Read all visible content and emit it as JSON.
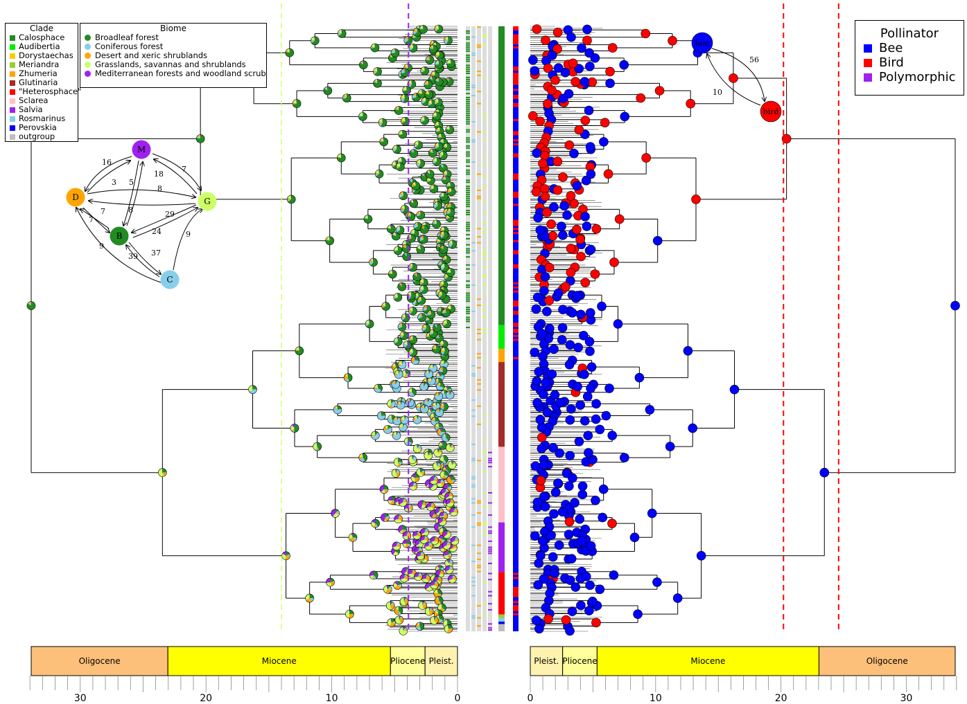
{
  "clade_legend": {
    "title": "Clade",
    "items": [
      {
        "label": "Calosphace",
        "color": "#228B22"
      },
      {
        "label": "Audibertia",
        "color": "#00EE00"
      },
      {
        "label": "Dorystaechas",
        "color": "#F2D000"
      },
      {
        "label": "Meriandra",
        "color": "#9ACD32"
      },
      {
        "label": "Zhumeria",
        "color": "#FFA500"
      },
      {
        "label": "Glutinaria",
        "color": "#A52A2A"
      },
      {
        "label": "\"Heterosphace\"",
        "color": "#FF0000"
      },
      {
        "label": "Sclarea",
        "color": "#FFC0CB"
      },
      {
        "label": "Salvia",
        "color": "#A020F0"
      },
      {
        "label": "Rosmarinus",
        "color": "#87CEEB"
      },
      {
        "label": "Perovskia",
        "color": "#0000EE"
      },
      {
        "label": "outgroup",
        "color": "#BEBEBE"
      }
    ]
  },
  "biome_legend": {
    "title": "Biome",
    "items": [
      {
        "label": "Broadleaf forest",
        "color": "#228B22"
      },
      {
        "label": "Coniferous forest",
        "color": "#87CEEB"
      },
      {
        "label": "Desert and xeric shrublands",
        "color": "#FFA500"
      },
      {
        "label": "Grasslands, savannas and shrublands",
        "color": "#CCFF66"
      },
      {
        "label": "Mediterranean forests and woodland scrub",
        "color": "#A020F0"
      }
    ]
  },
  "pollinator_legend": {
    "title": "Pollinator",
    "items": [
      {
        "label": "Bee",
        "color": "#0000FF"
      },
      {
        "label": "Bird",
        "color": "#FF0000"
      },
      {
        "label": "Polymorphic",
        "color": "#A020F0"
      }
    ]
  },
  "biome_network": {
    "nodes": [
      {
        "id": "M",
        "label": "M",
        "color": "#A020F0"
      },
      {
        "id": "D",
        "label": "D",
        "color": "#FFA500"
      },
      {
        "id": "G",
        "label": "G",
        "color": "#CCFF66"
      },
      {
        "id": "B",
        "label": "B",
        "color": "#228B22"
      },
      {
        "id": "C",
        "label": "C",
        "color": "#87CEEB"
      }
    ],
    "edge_labels": [
      "16",
      "3",
      "5",
      "18",
      "7",
      "8",
      "8",
      "29",
      "24",
      "7",
      "7",
      "9",
      "39",
      "37",
      "9"
    ]
  },
  "pollinator_network": {
    "nodes": [
      {
        "id": "bee",
        "label": "bee",
        "color": "#0000FF"
      },
      {
        "id": "bird",
        "label": "bird",
        "color": "#FF0000"
      }
    ],
    "edge_labels": [
      "56",
      "10"
    ]
  },
  "left_timescale": {
    "epochs": [
      {
        "label": "Oligocene",
        "from": 33.9,
        "to": 23.03,
        "color": "#FDC07A"
      },
      {
        "label": "Miocene",
        "from": 23.03,
        "to": 5.33,
        "color": "#FFFF00"
      },
      {
        "label": "Pliocene",
        "from": 5.33,
        "to": 2.58,
        "color": "#FFFF99"
      },
      {
        "label": "Pleist.",
        "from": 2.58,
        "to": 0,
        "color": "#FFF2AE"
      }
    ],
    "ticks": [
      "30",
      "20",
      "10",
      "0"
    ]
  },
  "right_timescale": {
    "epochs": [
      {
        "label": "Pleist.",
        "from": 0,
        "to": 2.58,
        "color": "#FFF2AE"
      },
      {
        "label": "Pliocene",
        "from": 2.58,
        "to": 5.33,
        "color": "#FFFF99"
      },
      {
        "label": "Miocene",
        "from": 5.33,
        "to": 23.03,
        "color": "#FFFF00"
      },
      {
        "label": "Oligocene",
        "from": 23.03,
        "to": 33.9,
        "color": "#FDC07A"
      }
    ],
    "ticks": [
      "0",
      "10",
      "20",
      "30"
    ]
  },
  "dashed_lines": [
    {
      "age": 14.0,
      "color": "#CCFF66"
    },
    {
      "age": 3.9,
      "color": "#A020F0"
    },
    {
      "age": 20.2,
      "color": "#FF0000"
    },
    {
      "age": 24.6,
      "color": "#FF0000"
    }
  ],
  "clade_bar": [
    {
      "clade": "Calosphace",
      "from": 0.0,
      "to": 0.494
    },
    {
      "clade": "Audibertia",
      "from": 0.494,
      "to": 0.533
    },
    {
      "clade": "Zhumeria",
      "from": 0.533,
      "to": 0.555
    },
    {
      "clade": "Glutinaria",
      "from": 0.555,
      "to": 0.695
    },
    {
      "clade": "Sclarea",
      "from": 0.695,
      "to": 0.82
    },
    {
      "clade": "Salvia",
      "from": 0.82,
      "to": 0.902
    },
    {
      "clade": "\"Heterosphace\"",
      "from": 0.902,
      "to": 0.972
    },
    {
      "clade": "Meriandra",
      "from": 0.972,
      "to": 0.978
    },
    {
      "clade": "Rosmarinus",
      "from": 0.978,
      "to": 0.984
    },
    {
      "clade": "Perovskia",
      "from": 0.984,
      "to": 0.988
    },
    {
      "clade": "outgroup",
      "from": 0.988,
      "to": 1.0
    }
  ]
}
